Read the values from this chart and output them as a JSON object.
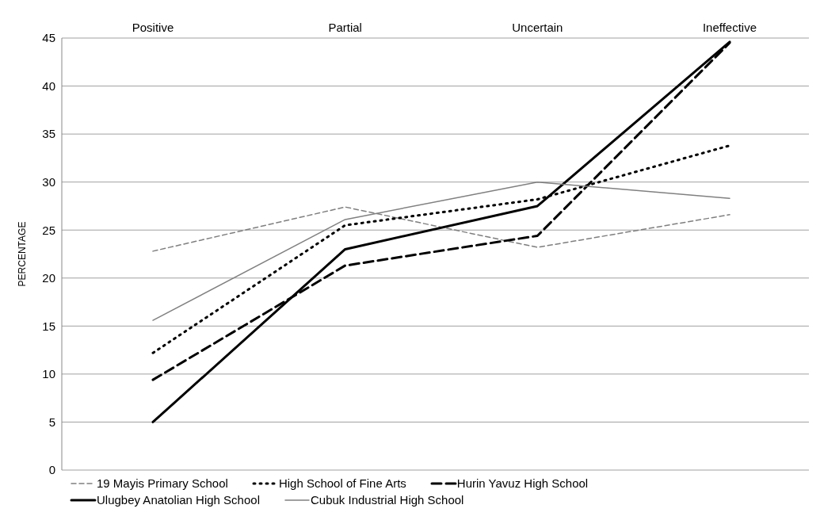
{
  "chart_data": {
    "type": "line",
    "ylabel": "PERCENTAGE",
    "categories": [
      "Positive",
      "Partial",
      "Uncertain",
      "Ineffective"
    ],
    "series": [
      {
        "name": "19 Mayis Primary School",
        "color": "#7f7f7f",
        "line_style": "dashed",
        "values": [
          22.8,
          27.4,
          23.2,
          26.6
        ]
      },
      {
        "name": "High School of Fine Arts",
        "color": "#000000",
        "line_style": "dotted",
        "values": [
          12.2,
          25.5,
          28.2,
          33.8
        ]
      },
      {
        "name": "Hurin Yavuz High School",
        "color": "#000000",
        "line_style": "dashed",
        "values": [
          9.4,
          21.3,
          24.4,
          44.5
        ]
      },
      {
        "name": "Ulugbey Anatolian High School",
        "color": "#000000",
        "line_style": "solid",
        "values": [
          5.0,
          23.0,
          27.5,
          44.6
        ]
      },
      {
        "name": "Cubuk Industrial High School",
        "color": "#808080",
        "line_style": "solid",
        "values": [
          15.6,
          26.1,
          30.0,
          28.3
        ]
      }
    ],
    "ylim": [
      0,
      45
    ],
    "yticks": [
      0,
      5,
      10,
      15,
      20,
      25,
      30,
      35,
      40,
      45
    ],
    "grid": "y",
    "legend": "bottom",
    "marker": "none"
  }
}
